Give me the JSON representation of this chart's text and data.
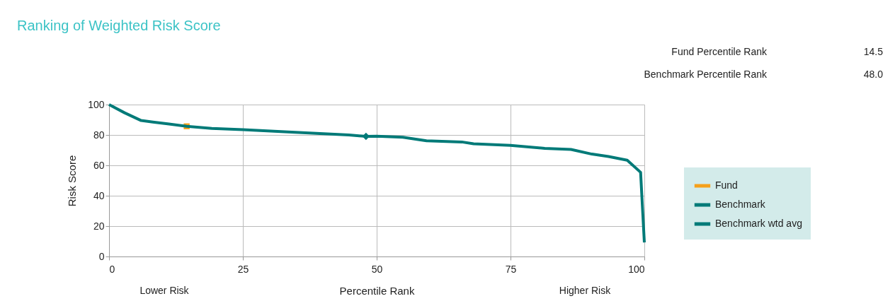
{
  "chart_data": {
    "type": "line",
    "title": "Ranking of Weighted Risk Score",
    "xlabel": "Percentile Rank",
    "ylabel": "Risk Score",
    "annotations": [
      "Fund Percentile Rank",
      "14.5",
      "Benchmark Percentile Rank",
      "48.0",
      "Lower Risk",
      "Higher Risk"
    ],
    "xlim": [
      0,
      100
    ],
    "xticks": [
      0,
      25,
      50,
      75,
      100
    ],
    "ylim": [
      0,
      100
    ],
    "yticks": [
      0,
      20,
      40,
      60,
      80,
      100
    ],
    "grid": true,
    "legend": "right",
    "line_style": "solid",
    "series": [
      {
        "name": "Fund",
        "type": "scatter",
        "marker": "square",
        "color": "#f5a01a",
        "x": [
          14.5
        ],
        "values": [
          85.7
        ]
      },
      {
        "name": "Benchmark",
        "type": "line",
        "marker": "none",
        "color": "#007a78",
        "x": [
          0,
          2.9,
          6,
          8.2,
          11.2,
          14.5,
          19.2,
          25,
          31.5,
          38.1,
          44.8,
          48,
          50,
          54.9,
          59.3,
          65.9,
          68.1,
          75,
          81.4,
          86.3,
          90.2,
          93.3,
          96.8,
          99.3,
          100
        ],
        "values": [
          100,
          94.6,
          89.5,
          88.5,
          87.2,
          85.7,
          84.3,
          83.5,
          82.3,
          81.2,
          80,
          79.1,
          79.2,
          78.5,
          76.2,
          75.4,
          74.2,
          73.1,
          71.2,
          70.5,
          67.4,
          65.8,
          63.4,
          55.4,
          9.2
        ]
      },
      {
        "name": "Benchmark wtd avg",
        "type": "scatter",
        "marker": "diamond",
        "color": "#007a78",
        "x": [
          48
        ],
        "values": [
          79.1
        ]
      }
    ]
  }
}
